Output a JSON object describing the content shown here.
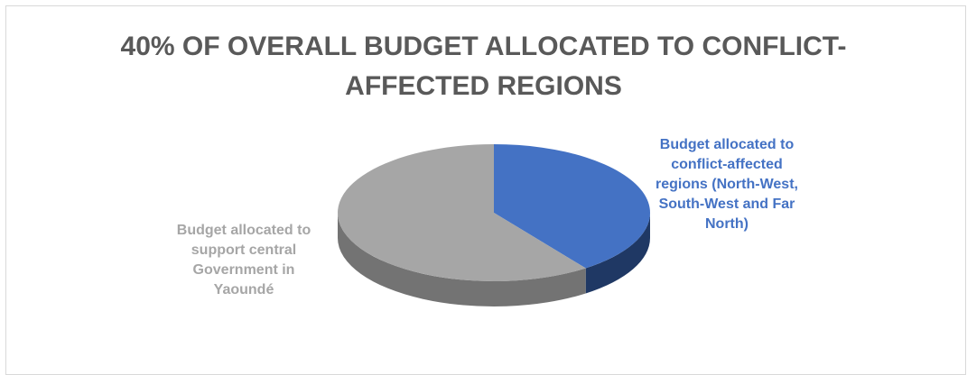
{
  "chart_data": {
    "type": "pie",
    "title_lines": [
      "40% OF OVERALL BUDGET ALLOCATED TO CONFLICT-",
      "AFFECTED REGIONS"
    ],
    "slices": [
      {
        "label_lines": [
          "Budget allocated to",
          "conflict-affected",
          "regions (North-West,",
          "South-West and Far",
          "North)"
        ],
        "value": 40,
        "color": "#4472c4",
        "side_color": "#1f3864"
      },
      {
        "label_lines": [
          "Budget allocated  to",
          "support central",
          "Government in",
          "Yaoundé"
        ],
        "value": 60,
        "color": "#a6a6a6",
        "side_color": "#737373"
      }
    ],
    "style": "3d"
  }
}
